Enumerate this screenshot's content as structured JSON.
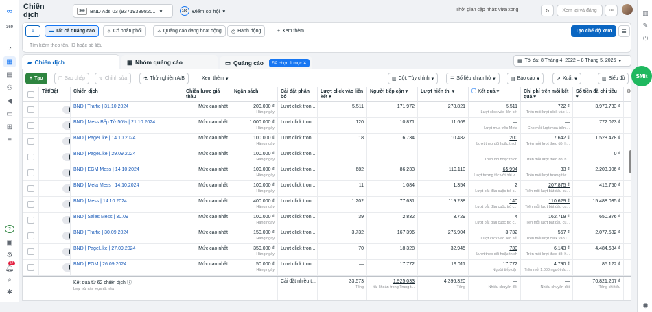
{
  "topbar": {
    "title": "Chiến dịch",
    "account_badge": "360",
    "account_name": "BND Ads 03 (93719389820...",
    "opportunity_score": "100",
    "opportunity_label": "Điểm cơ hội",
    "update_text": "Thời gian cập nhật: vừa xong",
    "review_label": "Xem lại và đăng"
  },
  "filters": {
    "all_ads": "Tất cả quảng cáo",
    "has_delivery": "Có phân phối",
    "active_ads": "Quảng cáo đang hoạt động",
    "actions": "Hành động",
    "see_more": "Xem thêm",
    "create_view": "Tạo chế độ xem",
    "search_placeholder": "Tìm kiếm theo tên, ID hoặc số liệu"
  },
  "tabs": {
    "campaigns": "Chiến dịch",
    "adsets": "Nhóm quảng cáo",
    "ads": "Quảng cáo",
    "selected_chip": "Đã chọn 1 mục",
    "date_range": "Tối đa: 8 Tháng 4, 2022 – 8 Tháng 5, 2025"
  },
  "actionbar": {
    "create": "Tạo",
    "copy": "Sao chép",
    "edit": "Chỉnh sửa",
    "ab_test": "Thử nghiệm A/B",
    "more": "Xem thêm",
    "columns": "Cột: Tùy chỉnh",
    "breakdown": "Số liệu chia nhỏ",
    "reports": "Báo cáo",
    "export": "Xuất",
    "charts": "Biểu đồ"
  },
  "headers": {
    "onoff": "Tắt/Bật",
    "campaign": "Chiến dịch",
    "bid": "Chiến lược giá thầu",
    "budget": "Ngân sách",
    "attribution": "Cài đặt phân bổ",
    "link_clicks": "Lượt click vào liên kết",
    "reach": "Người tiếp cận",
    "impressions": "Lượt hiển thị",
    "results": "Kết quả",
    "cpr": "Chi phí trên mỗi kết quả",
    "spent": "Số tiền đã chi tiêu"
  },
  "rows": [
    {
      "name": "BND | Traffic | 31.10.2024",
      "bid": "Mức cao nhất",
      "budget": "200.000 ₫",
      "budget_sub": "Hàng ngày",
      "attr": "Lượt click tron...",
      "clicks": "5.511",
      "reach": "171.972",
      "impr": "278.821",
      "result": "5.511",
      "result_sub": "Lượt click vào liên kết",
      "result_ul": false,
      "cpr": "722 ₫",
      "cpr_sub": "Trên mỗi lượt click vào l...",
      "cpr_ul": false,
      "spent": "3.979.733 ₫"
    },
    {
      "name": "BND | Mess Bếp Từ 50% | 21.10.2024",
      "bid": "Mức cao nhất",
      "budget": "1.000.000 ₫",
      "budget_sub": "Hàng ngày",
      "attr": "Lượt click tron...",
      "clicks": "120",
      "reach": "10.871",
      "impr": "11.669",
      "result": "—",
      "result_sub": "Lượt mua trên Meta",
      "result_ul": false,
      "cpr": "—",
      "cpr_sub": "Cho mỗi lượt mua trên ...",
      "cpr_ul": false,
      "spent": "772.023 ₫"
    },
    {
      "name": "BND | PageLike | 14.10.2024",
      "bid": "Mức cao nhất",
      "budget": "100.000 ₫",
      "budget_sub": "Hàng ngày",
      "attr": "Lượt click tron...",
      "clicks": "18",
      "reach": "6.734",
      "impr": "10.482",
      "result": "200",
      "result_sub": "Lượt theo dõi hoặc thích",
      "result_ul": true,
      "cpr": "7.642 ₫",
      "cpr_sub": "Trên mỗi lượt theo dõi h...",
      "cpr_ul": false,
      "spent": "1.528.478 ₫"
    },
    {
      "name": "BND | PageLike | 29.09.2024",
      "bid": "Mức cao nhất",
      "budget": "100.000 ₫",
      "budget_sub": "Hàng ngày",
      "attr": "Lượt click tron...",
      "clicks": "—",
      "reach": "—",
      "impr": "—",
      "result": "—",
      "result_sub": "Theo dõi hoặc thích",
      "result_ul": false,
      "cpr": "—",
      "cpr_sub": "Trên mỗi lượt theo dõi h...",
      "cpr_ul": false,
      "spent": "0 ₫"
    },
    {
      "name": "BND | EGM Mess | 14.10.2024",
      "bid": "Mức cao nhất",
      "budget": "100.000 ₫",
      "budget_sub": "Hàng ngày",
      "attr": "Lượt click tron...",
      "clicks": "682",
      "reach": "86.233",
      "impr": "110.110",
      "result": "65.994",
      "result_sub": "Lượt tương tác với bài v...",
      "result_ul": true,
      "cpr": "33 ₫",
      "cpr_sub": "Trên mỗi lượt tương tác...",
      "cpr_ul": false,
      "spent": "2.203.906 ₫"
    },
    {
      "name": "BND | Meta Mess | 14.10.2024",
      "bid": "Mức cao nhất",
      "budget": "100.000 ₫",
      "budget_sub": "Hàng ngày",
      "attr": "Lượt click tron...",
      "clicks": "11",
      "reach": "1.084",
      "impr": "1.354",
      "result": "2",
      "result_sub": "Lượt bắt đầu cuộc trò c...",
      "result_ul": false,
      "cpr": "207.875 ₫",
      "cpr_sub": "Trên mỗi lượt bắt đầu cu...",
      "cpr_ul": true,
      "spent": "415.750 ₫"
    },
    {
      "name": "BND | Mess | 14.10.2024",
      "bid": "Mức cao nhất",
      "budget": "400.000 ₫",
      "budget_sub": "Hàng ngày",
      "attr": "Lượt click tron...",
      "clicks": "1.202",
      "reach": "77.631",
      "impr": "119.238",
      "result": "140",
      "result_sub": "Lượt bắt đầu cuộc trò c...",
      "result_ul": true,
      "cpr": "110.629 ₫",
      "cpr_sub": "Trên mỗi lượt bắt đầu cu...",
      "cpr_ul": true,
      "spent": "15.488.035 ₫"
    },
    {
      "name": "BND | Sales Mess | 30.09",
      "bid": "Mức cao nhất",
      "budget": "100.000 ₫",
      "budget_sub": "Hàng ngày",
      "attr": "Lượt click tron...",
      "clicks": "39",
      "reach": "2.832",
      "impr": "3.729",
      "result": "4",
      "result_sub": "Lượt bắt đầu cuộc trò c...",
      "result_ul": true,
      "cpr": "162.719 ₫",
      "cpr_sub": "Trên mỗi lượt bắt đầu cu...",
      "cpr_ul": true,
      "spent": "650.876 ₫"
    },
    {
      "name": "BND | Traffic | 30.09.2024",
      "bid": "Mức cao nhất",
      "budget": "150.000 ₫",
      "budget_sub": "Hàng ngày",
      "attr": "Lượt click tron...",
      "clicks": "3.732",
      "reach": "167.396",
      "impr": "275.904",
      "result": "3.732",
      "result_sub": "Lượt click vào liên kết",
      "result_ul": true,
      "cpr": "557 ₫",
      "cpr_sub": "Trên mỗi lượt click vào l...",
      "cpr_ul": false,
      "spent": "2.077.582 ₫"
    },
    {
      "name": "BND | PageLike | 27.09.2024",
      "bid": "Mức cao nhất",
      "budget": "350.000 ₫",
      "budget_sub": "Hàng ngày",
      "attr": "Lượt click tron...",
      "clicks": "70",
      "reach": "18.328",
      "impr": "32.945",
      "result": "730",
      "result_sub": "Lượt theo dõi hoặc thích",
      "result_ul": true,
      "cpr": "6.143 ₫",
      "cpr_sub": "Trên mỗi lượt theo dõi h...",
      "cpr_ul": false,
      "spent": "4.484.684 ₫"
    },
    {
      "name": "BND | EGM | 26.09.2024",
      "bid": "Mức cao nhất",
      "budget": "50.000 ₫",
      "budget_sub": "Hàng ngày",
      "attr": "Lượt click tron...",
      "clicks": "—",
      "reach": "17.772",
      "impr": "19.011",
      "result": "17.772",
      "result_sub": "Người tiếp cận",
      "result_ul": false,
      "cpr": "4.790 ₫",
      "cpr_sub": "Trên mỗi 1.000 người đư...",
      "cpr_ul": false,
      "spent": "85.122 ₫"
    }
  ],
  "summary": {
    "label": "Kết quả từ 62 chiến dịch",
    "sub": "Loại trừ các mục đã xóa",
    "attr": "Cài đặt nhiều t...",
    "clicks": "33.573",
    "clicks_sub": "Tổng",
    "reach": "1.925.033",
    "reach_sub": "tài khoản trong Trung t...",
    "impr": "4.396.320",
    "impr_sub": "Tổng",
    "result": "—",
    "result_sub": "Nhiều chuyển đổi",
    "cpr": "—",
    "cpr_sub": "Nhiều chuyển đổi",
    "spent": "70.821.207 ₫",
    "spent_sub": "Tổng chi tiêu"
  },
  "notifications_count": "57",
  "floating_label": "SMit",
  "colors": {
    "primary": "#0a66c2",
    "create_green": "#2e8540",
    "link": "#1a5bb8"
  }
}
